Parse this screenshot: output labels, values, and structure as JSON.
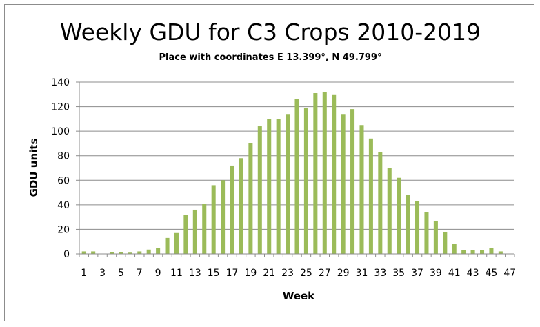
{
  "chart_data": {
    "type": "bar",
    "title": "Weekly GDU for C3 Crops 2010-2019",
    "subtitle": "Place with coordinates E 13.399°, N 49.799°",
    "xlabel": "Week",
    "ylabel": "GDU units",
    "ylim": [
      0,
      140
    ],
    "yticks": [
      0,
      20,
      40,
      60,
      80,
      100,
      120,
      140
    ],
    "grid": true,
    "legend": "none",
    "bar_color": "#9bbb59",
    "categories": [
      1,
      2,
      3,
      4,
      5,
      6,
      7,
      8,
      9,
      10,
      11,
      12,
      13,
      14,
      15,
      16,
      17,
      18,
      19,
      20,
      21,
      22,
      23,
      24,
      25,
      26,
      27,
      28,
      29,
      30,
      31,
      32,
      33,
      34,
      35,
      36,
      37,
      38,
      39,
      40,
      41,
      42,
      43,
      44,
      45,
      46,
      47
    ],
    "x_tick_labels": [
      "1",
      "3",
      "5",
      "7",
      "9",
      "11",
      "13",
      "15",
      "17",
      "19",
      "21",
      "23",
      "25",
      "27",
      "29",
      "31",
      "33",
      "35",
      "37",
      "39",
      "41",
      "43",
      "45",
      "47"
    ],
    "values": [
      2,
      2,
      0,
      1.5,
      1.5,
      1,
      2,
      3.5,
      5,
      13,
      17,
      32,
      36,
      41,
      56,
      60,
      72,
      78,
      90,
      104,
      110,
      110,
      114,
      126,
      119,
      131,
      132,
      130,
      114,
      118,
      105,
      94,
      83,
      70,
      62,
      48,
      43,
      34,
      27,
      18,
      8,
      3,
      3,
      3,
      5,
      2,
      0
    ]
  }
}
